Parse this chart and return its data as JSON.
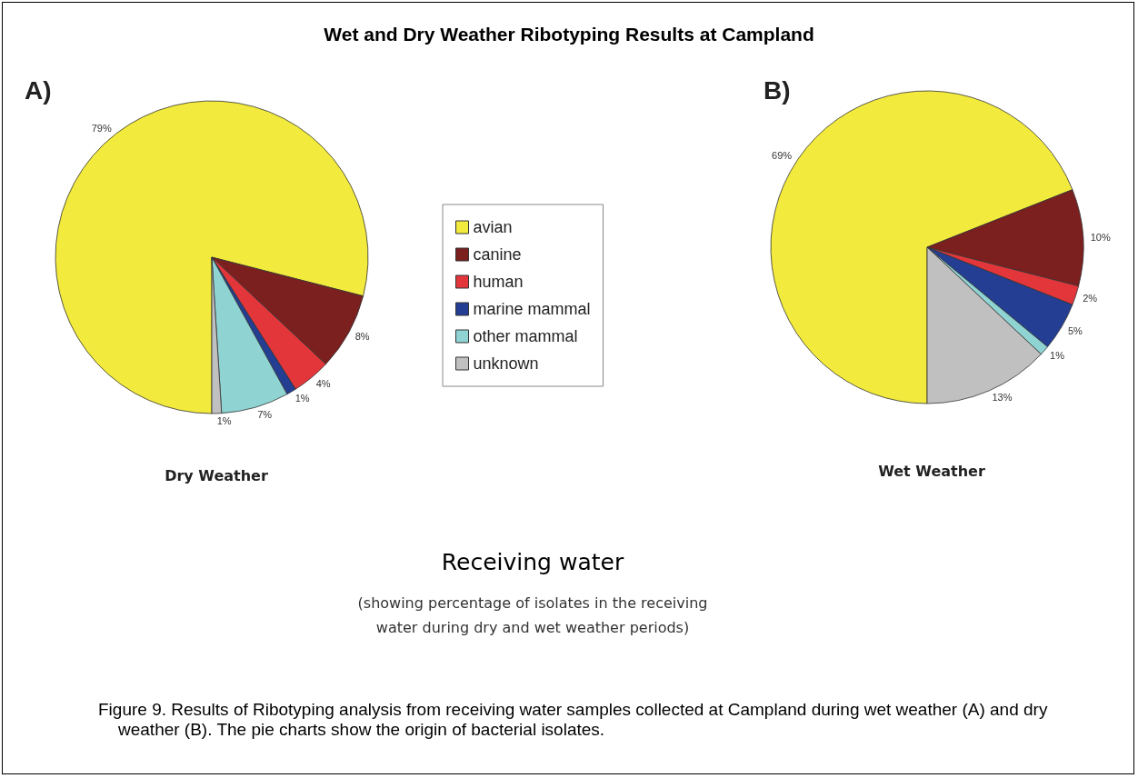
{
  "chart_data": {
    "type": "pie",
    "title": "Wet and Dry Weather Ribotyping Results at Campland",
    "categories": [
      "avian",
      "canine",
      "human",
      "marine mammal",
      "other mammal",
      "unknown"
    ],
    "colors": [
      "#f2ea3c",
      "#7b1f1f",
      "#e2363a",
      "#233e92",
      "#8fd3d3",
      "#c0c0c0"
    ],
    "legend": "center",
    "series": [
      {
        "name": "Dry Weather",
        "values": [
          79,
          8,
          4,
          1,
          7,
          1
        ],
        "value_labels": [
          "79%",
          "8%",
          "4%",
          "1%",
          "7%",
          "1%"
        ]
      },
      {
        "name": "Wet Weather",
        "values": [
          69,
          10,
          2,
          5,
          1,
          13
        ],
        "value_labels": [
          "69%",
          "10%",
          "2%",
          "5%",
          "1%",
          "13%"
        ]
      }
    ],
    "annotations": [
      "A)",
      "B)",
      "Receiving water",
      "(showing percentage of isolates in the receiving water during dry and wet weather periods)",
      "Figure 9.  Results of Ribotyping analysis from receiving water samples collected at Campland during wet weather (A) and dry weather (B).  The pie charts show the origin of bacterial isolates."
    ]
  }
}
